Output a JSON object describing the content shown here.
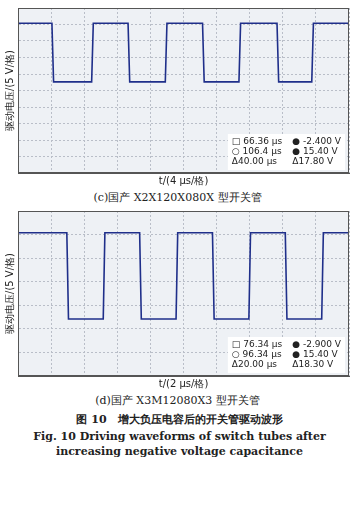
{
  "caption": "图 10　增大负压电容后的开关管驱动波形",
  "caption_en": "Fig. 10 Driving waveforms of switch tubes after increasing negative voltage capacitance",
  "chart_data": [
    {
      "type": "line",
      "subtitle": "(c)国产 X2X120X080X 型开关管",
      "x_label": "t/(4 μs/格)",
      "y_label": "驱动电压/(5 V/格)",
      "x": [
        0,
        4.1,
        4.3,
        8.9,
        9.1,
        13.3,
        13.5,
        17.8,
        18.0,
        22.3,
        22.5,
        26.7,
        26.9,
        31.3,
        31.5,
        35.5,
        35.7,
        40
      ],
      "values": [
        15.4,
        15.4,
        -2.4,
        -2.4,
        15.4,
        15.4,
        -2.4,
        -2.4,
        15.4,
        15.4,
        -2.4,
        -2.4,
        15.4,
        15.4,
        -2.4,
        -2.4,
        15.4,
        15.4
      ],
      "color": "#1f2f8a",
      "xlim": [
        0,
        40
      ],
      "xticks": [
        0,
        4,
        8,
        12,
        16,
        20,
        24,
        28,
        32,
        36,
        40
      ],
      "ylim": [
        -30,
        20
      ],
      "yticks": [
        -30,
        -25,
        -20,
        -15,
        -10,
        -5,
        0,
        5,
        10,
        15,
        20
      ],
      "grid": true,
      "tick_labels": false,
      "annotations": [
        [
          "□ 66.36 μs",
          "○ 106.4 μs",
          "Δ40.00 μs"
        ],
        [
          "● -2.400 V",
          "● 15.40 V",
          "Δ17.80 V"
        ]
      ]
    },
    {
      "type": "line",
      "subtitle": "(d)国产 X3M12080X3 型开关管",
      "x_label": "t/(2 μs/格)",
      "y_label": "驱动电压/(5 V/格)",
      "x": [
        0,
        2.95,
        3.05,
        5.15,
        5.25,
        7.35,
        7.45,
        9.55,
        9.65,
        11.75,
        11.85,
        13.95,
        14.05,
        16.15,
        16.25,
        18.35,
        18.45,
        20
      ],
      "values": [
        15.4,
        15.4,
        -2.9,
        -2.9,
        15.4,
        15.4,
        -2.9,
        -2.9,
        15.4,
        15.4,
        -2.9,
        -2.9,
        15.4,
        15.4,
        -2.9,
        -2.9,
        15.4,
        15.4
      ],
      "color": "#1f2f8a",
      "xlim": [
        0,
        20
      ],
      "xticks": [
        0,
        2,
        4,
        6,
        8,
        10,
        12,
        14,
        16,
        18,
        20
      ],
      "ylim": [
        -15,
        20
      ],
      "yticks": [
        -15,
        -10,
        -5,
        0,
        5,
        10,
        15,
        20
      ],
      "grid": true,
      "tick_labels": false,
      "annotations": [
        [
          "□ 76.34 μs",
          "○ 96.34 μs",
          "Δ20.00 μs"
        ],
        [
          "● -2.900 V",
          "● 15.40 V",
          "Δ18.30 V"
        ]
      ]
    }
  ]
}
